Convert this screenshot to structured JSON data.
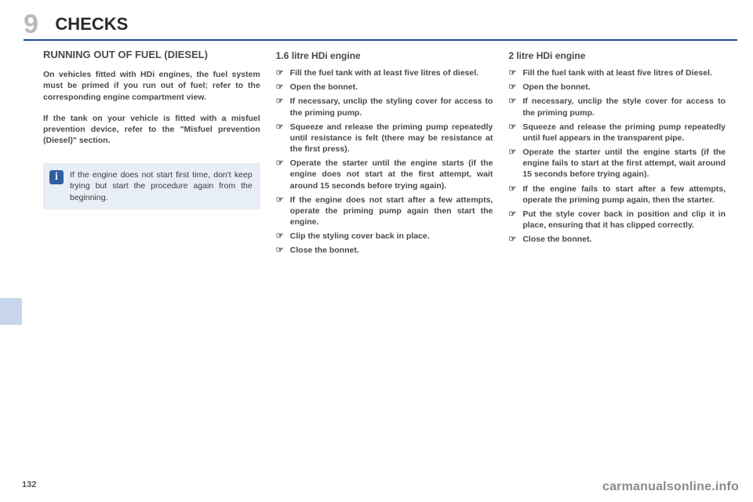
{
  "header": {
    "chapter_number": "9",
    "chapter_title": "CHECKS"
  },
  "left_col": {
    "section_title": "RUNNING OUT OF FUEL (DIESEL)",
    "para1": "On vehicles fitted with HDi engines, the fuel system must be primed if you run out of fuel; refer to the corresponding engine compartment view.",
    "para2": "If the tank on your vehicle is fitted with a misfuel prevention device, refer to the \"Misfuel prevention (Diesel)\" section.",
    "info_text": "If the engine does not start first time, don't keep trying but start the procedure again from the begin­ning."
  },
  "mid_col": {
    "subhead": "1.6 litre HDi engine",
    "items": [
      "Fill the fuel tank with at least five li­tres of diesel.",
      "Open the bonnet.",
      "If necessary, unclip the styling cover for access to the priming pump.",
      "Squeeze and release the priming pump repeatedly until resistance is felt (there may be resistance at the first press).",
      "Operate the starter until the engine starts (if the engine does not start at the first attempt, wait around 15 sec­onds before trying again).",
      "If the engine does not start after a few attempts, operate the priming pump again then start the engine.",
      "Clip the styling cover back in place.",
      "Close the bonnet."
    ]
  },
  "right_col": {
    "subhead": "2 litre HDi engine",
    "items": [
      "Fill the fuel tank with at least five li­tres of Diesel.",
      "Open the bonnet.",
      "If necessary, unclip the style cover for access to the priming pump.",
      "Squeeze and release the priming pump repeatedly until fuel appears in the transparent pipe.",
      "Operate the starter until the engine starts (if the engine fails to start at the first attempt, wait around 15 sec­onds before trying again).",
      "If the engine fails to start after a few attempts, operate the priming pump again, then the starter.",
      "Put the style cover back in position and clip it in place, ensuring that it has clipped correctly.",
      "Close the bonnet."
    ]
  },
  "footer": {
    "page_number": "132",
    "watermark": "carmanualsonline.info"
  }
}
